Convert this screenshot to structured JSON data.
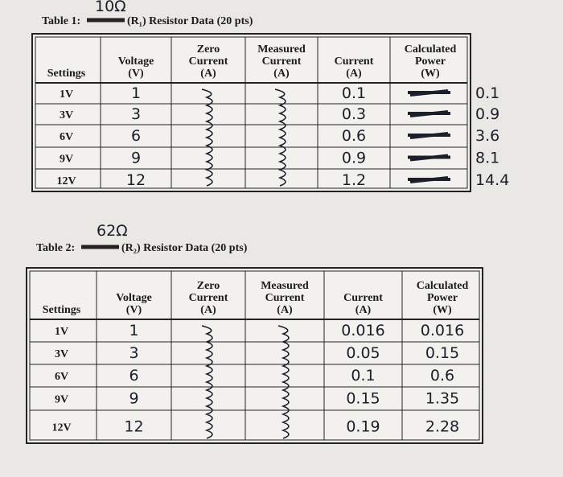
{
  "table1": {
    "label": "Table 1:",
    "title": "(R₁) Resistor Data (20 pts)",
    "resistance": "10Ω",
    "header": [
      [
        "Settings"
      ],
      [
        "Voltage",
        "(V)"
      ],
      [
        "Zero",
        "Current",
        "(A)"
      ],
      [
        "Measured",
        "Current",
        "(A)"
      ],
      [
        "Current",
        "(A)"
      ],
      [
        "Calculated",
        "Power",
        "(W)"
      ]
    ],
    "rows": [
      [
        "1V",
        "1",
        "0.1",
        "0.1"
      ],
      [
        "3V",
        "3",
        "0.3",
        "0.9"
      ],
      [
        "6V",
        "6",
        "0.6",
        "3.6"
      ],
      [
        "9V",
        "9",
        "0.9",
        "8.1"
      ],
      [
        "12V",
        "12",
        "1.2",
        "14.4"
      ]
    ]
  },
  "table2": {
    "label": "Table 2:",
    "title": "(R₂) Resistor Data (20 pts)",
    "resistance": "62Ω",
    "header": [
      [
        "Settings"
      ],
      [
        "Voltage",
        "(V)"
      ],
      [
        "Zero",
        "Current",
        "(A)"
      ],
      [
        "Measured",
        "Current",
        "(A)"
      ],
      [
        "Current",
        "(A)"
      ],
      [
        "Calculated",
        "Power",
        "(W)"
      ]
    ],
    "rows": [
      [
        "1V",
        "1",
        "0.016",
        "0.016"
      ],
      [
        "3V",
        "3",
        "0.05",
        "0.15"
      ],
      [
        "6V",
        "6",
        "0.1",
        "0.6"
      ],
      [
        "9V",
        "9",
        "0.15",
        "1.35"
      ],
      [
        "12V",
        "12",
        "0.19",
        "2.28"
      ]
    ]
  }
}
